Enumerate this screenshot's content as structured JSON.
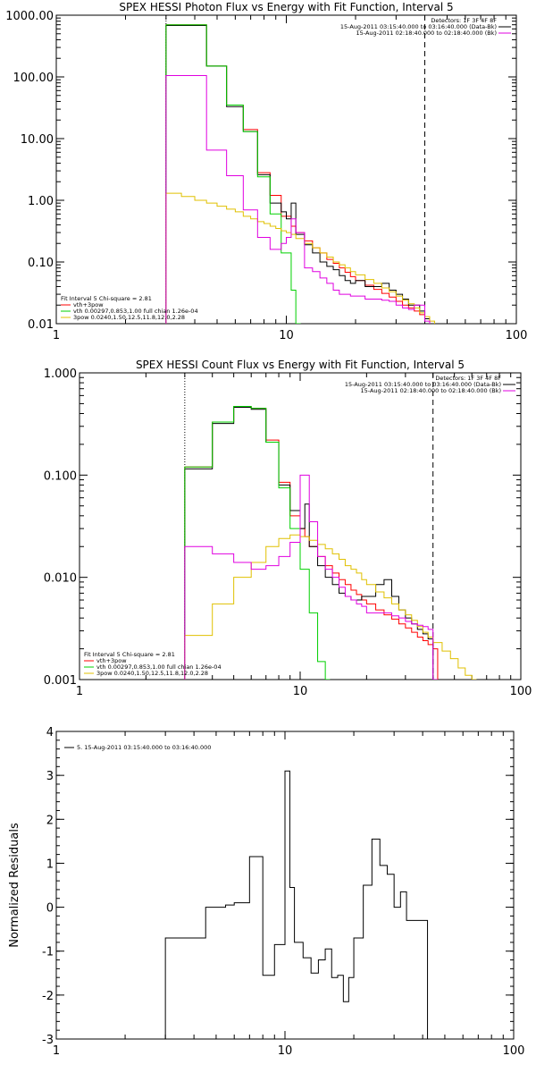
{
  "chart_data": [
    {
      "type": "line",
      "title": "SPEX HESSI Photon Flux vs Energy with Fit Function, Interval 5",
      "xlabel": "",
      "ylabel": "",
      "x_scale": "log",
      "y_scale": "log",
      "xlim": [
        1,
        100
      ],
      "ylim": [
        0.01,
        1000
      ],
      "x_ticks": [
        1,
        10,
        100
      ],
      "x_tick_labels": [
        "1",
        "10",
        "100"
      ],
      "y_ticks": [
        1000,
        100,
        10,
        1,
        0.1,
        0.01
      ],
      "y_tick_labels": [
        "1000.00",
        "100.00",
        "10.00",
        "1.00",
        "0.10",
        "0.01"
      ],
      "vlines": [
        {
          "x": 3.0,
          "style": "dotted",
          "color": "#000000"
        },
        {
          "x": 40.0,
          "style": "dashed",
          "color": "#000000"
        }
      ],
      "legend_top_right": [
        {
          "text": "Detectors: 1F 3F 4F 8F",
          "color": ""
        },
        {
          "text": "15-Aug-2011 03:15:40.000 to 03:16:40.000 (Data-Bk)",
          "color": "#000000"
        },
        {
          "text": "15-Aug-2011 02:18:40.000 to 02:18:40.000 (Bk)",
          "color": "#e000e0"
        }
      ],
      "legend_bottom_left": [
        {
          "text": "Fit Interval 5   Chi-square = 2.81",
          "color": ""
        },
        {
          "text": "vth+3pow",
          "color": "#ff0000"
        },
        {
          "text": "vth 0.00297,0.853,1.00   full chian 1.26e-04",
          "color": "#00d000"
        },
        {
          "text": "3pow 0.0240,1.50,12.5,11.8,12.0,2.28",
          "color": "#e0c000"
        }
      ],
      "series": [
        {
          "name": "vth+3pow",
          "color": "#ff0000",
          "x": [
            3.0,
            3.5,
            4.0,
            4.5,
            5.0,
            5.5,
            6.0,
            6.5,
            7.0,
            7.5,
            8.0,
            8.5,
            9.0,
            9.5,
            10.0,
            10.5,
            11.0,
            12.0,
            13.0,
            14.0,
            15.0,
            16.0,
            17.0,
            18.0,
            19.0,
            20.0,
            22.0,
            24.0,
            26.0,
            28.0,
            30.0,
            32.0,
            34.0,
            36.0,
            38.0,
            40.0
          ],
          "y": [
            700,
            700,
            700,
            150,
            150,
            35,
            35,
            14,
            14,
            2.8,
            2.8,
            1.2,
            1.2,
            0.55,
            0.55,
            0.38,
            0.3,
            0.22,
            0.17,
            0.14,
            0.11,
            0.095,
            0.08,
            0.068,
            0.058,
            0.05,
            0.042,
            0.036,
            0.031,
            0.027,
            0.023,
            0.02,
            0.018,
            0.016,
            0.014,
            0.012
          ]
        },
        {
          "name": "Data-Bk",
          "color": "#000000",
          "x": [
            3.0,
            3.5,
            4.0,
            4.5,
            5.0,
            5.5,
            6.0,
            6.5,
            7.0,
            7.5,
            8.0,
            8.5,
            9.0,
            9.5,
            10.0,
            10.5,
            11.0,
            12.0,
            13.0,
            14.0,
            15.0,
            16.0,
            17.0,
            18.0,
            19.0,
            20.0,
            22.0,
            24.0,
            26.0,
            28.0,
            30.0,
            32.0,
            34.0,
            36.0,
            38.0,
            40.0
          ],
          "y": [
            680,
            680,
            680,
            150,
            150,
            33,
            33,
            13,
            13,
            2.6,
            2.6,
            0.9,
            0.9,
            0.65,
            0.5,
            0.9,
            0.28,
            0.19,
            0.14,
            0.1,
            0.085,
            0.075,
            0.06,
            0.05,
            0.045,
            0.05,
            0.04,
            0.04,
            0.045,
            0.035,
            0.03,
            0.025,
            0.02,
            0.02,
            0.016,
            0.012
          ]
        },
        {
          "name": "vth",
          "color": "#00d000",
          "x": [
            3.0,
            3.5,
            4.0,
            4.5,
            5.0,
            5.5,
            6.0,
            6.5,
            7.0,
            7.5,
            8.0,
            8.5,
            9.0,
            9.5,
            10.0,
            10.5,
            11.0
          ],
          "y": [
            700,
            700,
            700,
            150,
            150,
            35,
            35,
            13,
            13,
            2.4,
            2.4,
            0.6,
            0.6,
            0.14,
            0.14,
            0.035,
            0.01
          ]
        },
        {
          "name": "3pow",
          "color": "#e0c000",
          "x": [
            3.0,
            3.5,
            4.0,
            4.5,
            5.0,
            5.5,
            6.0,
            6.5,
            7.0,
            7.5,
            8.0,
            8.5,
            9.0,
            9.5,
            10.0,
            10.5,
            11.0,
            12.0,
            13.0,
            14.0,
            15.0,
            16.0,
            17.0,
            18.0,
            19.0,
            20.0,
            22.0,
            24.0,
            26.0,
            28.0,
            30.0,
            32.0,
            34.0,
            36.0,
            38.0,
            40.0,
            42.0
          ],
          "y": [
            1.3,
            1.15,
            1.0,
            0.9,
            0.8,
            0.72,
            0.65,
            0.55,
            0.5,
            0.45,
            0.42,
            0.38,
            0.35,
            0.32,
            0.3,
            0.28,
            0.24,
            0.2,
            0.17,
            0.14,
            0.12,
            0.1,
            0.09,
            0.08,
            0.07,
            0.062,
            0.052,
            0.045,
            0.038,
            0.033,
            0.028,
            0.024,
            0.021,
            0.018,
            0.015,
            0.013,
            0.011
          ]
        },
        {
          "name": "Bk",
          "color": "#e000e0",
          "x": [
            3.0,
            3.5,
            4.0,
            4.5,
            5.0,
            5.5,
            6.0,
            6.5,
            7.0,
            7.5,
            8.0,
            8.5,
            9.0,
            9.5,
            10.0,
            10.5,
            11.0,
            12.0,
            13.0,
            14.0,
            15.0,
            16.0,
            17.0,
            18.0,
            19.0,
            20.0,
            22.0,
            24.0,
            26.0,
            28.0,
            30.0,
            32.0,
            34.0,
            36.0,
            38.0,
            40.0
          ],
          "y": [
            105,
            105,
            105,
            6.5,
            6.5,
            2.5,
            2.5,
            0.7,
            0.7,
            0.25,
            0.25,
            0.16,
            0.16,
            0.2,
            0.25,
            0.5,
            0.3,
            0.08,
            0.07,
            0.055,
            0.045,
            0.035,
            0.03,
            0.03,
            0.028,
            0.028,
            0.025,
            0.025,
            0.024,
            0.023,
            0.02,
            0.018,
            0.017,
            0.02,
            0.02,
            0.011
          ]
        }
      ]
    },
    {
      "type": "line",
      "title": "SPEX HESSI Count Flux vs Energy with Fit Function, Interval 5",
      "xlabel": "",
      "ylabel": "",
      "x_scale": "log",
      "y_scale": "log",
      "xlim": [
        1,
        100
      ],
      "ylim": [
        0.001,
        1.0
      ],
      "x_ticks": [
        1,
        10,
        100
      ],
      "x_tick_labels": [
        "1",
        "10",
        "100"
      ],
      "y_ticks": [
        1.0,
        0.1,
        0.01,
        0.001
      ],
      "y_tick_labels": [
        "1.000",
        "0.100",
        "0.010",
        "0.001"
      ],
      "vlines": [
        {
          "x": 3.0,
          "style": "dotted",
          "color": "#000000"
        },
        {
          "x": 40.0,
          "style": "dashed",
          "color": "#000000"
        }
      ],
      "legend_top_right": [
        {
          "text": "Detectors: 1F 3F 4F 8F",
          "color": ""
        },
        {
          "text": "15-Aug-2011 03:15:40.000 to 03:16:40.000 (Data-Bk)",
          "color": "#000000"
        },
        {
          "text": "15-Aug-2011 02:18:40.000 to 02:18:40.000 (Bk)",
          "color": "#e000e0"
        }
      ],
      "legend_bottom_left": [
        {
          "text": "Fit Interval 5   Chi-square = 2.81",
          "color": ""
        },
        {
          "text": "vth+3pow",
          "color": "#ff0000"
        },
        {
          "text": "vth 0.00297,0.853,1.00   full chian 1.26e-04",
          "color": "#00d000"
        },
        {
          "text": "3pow 0.0240,1.50,12.5,11.8,12.0,2.28",
          "color": "#e0c000"
        }
      ],
      "series": [
        {
          "name": "vth+3pow",
          "color": "#ff0000",
          "x": [
            3.0,
            4.0,
            5.0,
            6.0,
            7.0,
            8.0,
            9.0,
            10.0,
            10.5,
            11.0,
            12.0,
            13.0,
            14.0,
            15.0,
            16.0,
            17.0,
            18.0,
            19.0,
            20.0,
            22.0,
            24.0,
            26.0,
            28.0,
            30.0,
            32.0,
            34.0,
            36.0,
            38.0,
            40.0
          ],
          "y": [
            0.12,
            0.33,
            0.47,
            0.45,
            0.22,
            0.085,
            0.04,
            0.03,
            0.025,
            0.02,
            0.016,
            0.013,
            0.011,
            0.0095,
            0.0085,
            0.0075,
            0.0068,
            0.006,
            0.0055,
            0.0048,
            0.0043,
            0.0039,
            0.0035,
            0.0032,
            0.0029,
            0.0026,
            0.0024,
            0.0022,
            0.002
          ]
        },
        {
          "name": "Data-Bk",
          "color": "#000000",
          "x": [
            3.0,
            4.0,
            5.0,
            6.0,
            7.0,
            8.0,
            9.0,
            10.0,
            10.5,
            11.0,
            12.0,
            13.0,
            14.0,
            15.0,
            16.0,
            17.0,
            18.0,
            19.0,
            20.0,
            22.0,
            24.0,
            26.0,
            28.0,
            30.0,
            32.0,
            34.0,
            36.0,
            38.0,
            40.0
          ],
          "y": [
            0.115,
            0.32,
            0.46,
            0.44,
            0.21,
            0.08,
            0.045,
            0.03,
            0.052,
            0.02,
            0.013,
            0.01,
            0.0085,
            0.007,
            0.0065,
            0.006,
            0.006,
            0.0065,
            0.0065,
            0.0085,
            0.0095,
            0.0065,
            0.0048,
            0.004,
            0.0035,
            0.0031,
            0.0028,
            0.0025,
            0.001
          ]
        },
        {
          "name": "vth",
          "color": "#00d000",
          "x": [
            3.0,
            4.0,
            5.0,
            6.0,
            7.0,
            8.0,
            9.0,
            10.0,
            11.0,
            12.0,
            13.0
          ],
          "y": [
            0.12,
            0.33,
            0.47,
            0.45,
            0.21,
            0.075,
            0.03,
            0.012,
            0.0045,
            0.0015,
            0.001
          ]
        },
        {
          "name": "3pow",
          "color": "#e0c000",
          "x": [
            3.0,
            3.5,
            4.0,
            4.5,
            5.0,
            5.5,
            6.0,
            6.5,
            7.0,
            7.5,
            8.0,
            8.5,
            9.0,
            9.5,
            10.0,
            10.5,
            11.0,
            12.0,
            13.0,
            14.0,
            15.0,
            16.0,
            17.0,
            18.0,
            19.0,
            20.0,
            22.0,
            24.0,
            26.0,
            28.0,
            30.0,
            32.0,
            34.0,
            36.0,
            38.0,
            40.0,
            44.0,
            48.0,
            52.0,
            56.0,
            60.0
          ],
          "y": [
            0.0027,
            0.0027,
            0.0055,
            0.0055,
            0.01,
            0.01,
            0.014,
            0.014,
            0.02,
            0.02,
            0.024,
            0.024,
            0.026,
            0.026,
            0.025,
            0.025,
            0.023,
            0.021,
            0.019,
            0.017,
            0.015,
            0.013,
            0.012,
            0.011,
            0.0095,
            0.0085,
            0.0072,
            0.0063,
            0.0055,
            0.0048,
            0.0043,
            0.0038,
            0.0033,
            0.0029,
            0.0026,
            0.0023,
            0.0019,
            0.0016,
            0.0013,
            0.0011,
            0.001
          ]
        },
        {
          "name": "Bk",
          "color": "#e000e0",
          "x": [
            3.0,
            4.0,
            5.0,
            6.0,
            7.0,
            8.0,
            9.0,
            10.0,
            11.0,
            12.0,
            13.0,
            14.0,
            15.0,
            16.0,
            17.0,
            18.0,
            19.0,
            20.0,
            22.0,
            24.0,
            26.0,
            28.0,
            30.0,
            32.0,
            34.0,
            36.0,
            38.0,
            40.0
          ],
          "y": [
            0.02,
            0.017,
            0.014,
            0.012,
            0.013,
            0.016,
            0.022,
            0.1,
            0.035,
            0.016,
            0.012,
            0.01,
            0.008,
            0.0065,
            0.006,
            0.0055,
            0.0052,
            0.0045,
            0.0045,
            0.0045,
            0.0042,
            0.004,
            0.0037,
            0.0035,
            0.0034,
            0.0033,
            0.0031,
            0.001
          ]
        }
      ]
    },
    {
      "type": "line",
      "title": "",
      "xlabel": "",
      "ylabel": "Normalized Residuals",
      "x_scale": "log",
      "y_scale": "linear",
      "xlim": [
        1,
        100
      ],
      "ylim": [
        -3,
        4
      ],
      "x_ticks": [
        1,
        10,
        100
      ],
      "x_tick_labels": [
        "1",
        "10",
        "100"
      ],
      "y_ticks": [
        4,
        3,
        2,
        1,
        0,
        -1,
        -2,
        -3
      ],
      "y_tick_labels": [
        "4",
        "3",
        "2",
        "1",
        "0",
        "-1",
        "-2",
        "-3"
      ],
      "legend_top_left": [
        {
          "text": "5. 15-Aug-2011 03:15:40.000 to 03:16:40.000",
          "color": "#000000"
        }
      ],
      "series": [
        {
          "name": "5. 15-Aug-2011 03:15:40.000 to 03:16:40.000",
          "color": "#000000",
          "x": [
            3.0,
            3.5,
            4.0,
            4.5,
            5.0,
            5.5,
            6.0,
            6.5,
            7.0,
            7.5,
            8.0,
            8.5,
            9.0,
            9.5,
            10.0,
            10.5,
            11.0,
            12.0,
            13.0,
            14.0,
            15.0,
            16.0,
            17.0,
            18.0,
            19.0,
            20.0,
            22.0,
            24.0,
            26.0,
            28.0,
            30.0,
            32.0,
            34.0,
            36.0,
            38.0,
            40.0
          ],
          "y": [
            -0.7,
            -0.7,
            -0.7,
            0.0,
            0.0,
            0.05,
            0.1,
            0.1,
            1.15,
            1.15,
            -1.55,
            -1.55,
            -0.85,
            -0.85,
            3.1,
            0.45,
            -0.8,
            -1.15,
            -1.5,
            -1.2,
            -0.95,
            -1.6,
            -1.55,
            -2.15,
            -1.6,
            -0.7,
            0.5,
            1.55,
            0.95,
            0.75,
            0.0,
            0.35,
            -0.3,
            -0.3,
            -0.3,
            -0.3
          ]
        }
      ]
    }
  ]
}
